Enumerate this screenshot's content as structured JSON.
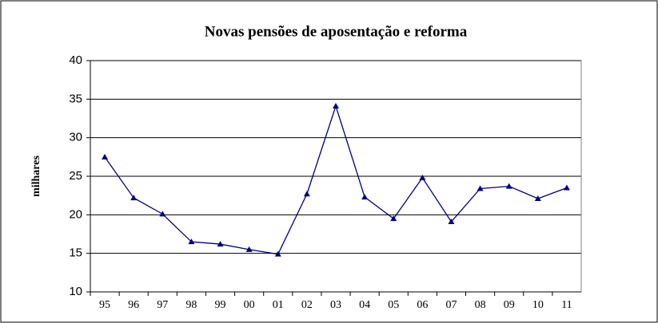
{
  "chart_data": {
    "type": "line",
    "title": "Novas pensões de aposentação e reforma",
    "y_label": "milhares",
    "categories": [
      "95",
      "96",
      "97",
      "98",
      "99",
      "00",
      "01",
      "02",
      "03",
      "04",
      "05",
      "06",
      "07",
      "08",
      "09",
      "10",
      "11"
    ],
    "series": [
      {
        "name": "Novas pensões",
        "color": "#000080",
        "values": [
          27.5,
          22.2,
          20.1,
          16.5,
          16.2,
          15.5,
          14.9,
          22.7,
          34.1,
          22.3,
          19.5,
          24.8,
          19.1,
          23.4,
          23.7,
          22.1,
          23.5
        ]
      }
    ],
    "ylim": [
      10,
      40
    ],
    "yticks": [
      10,
      15,
      20,
      25,
      30,
      35,
      40
    ],
    "grid": true
  }
}
